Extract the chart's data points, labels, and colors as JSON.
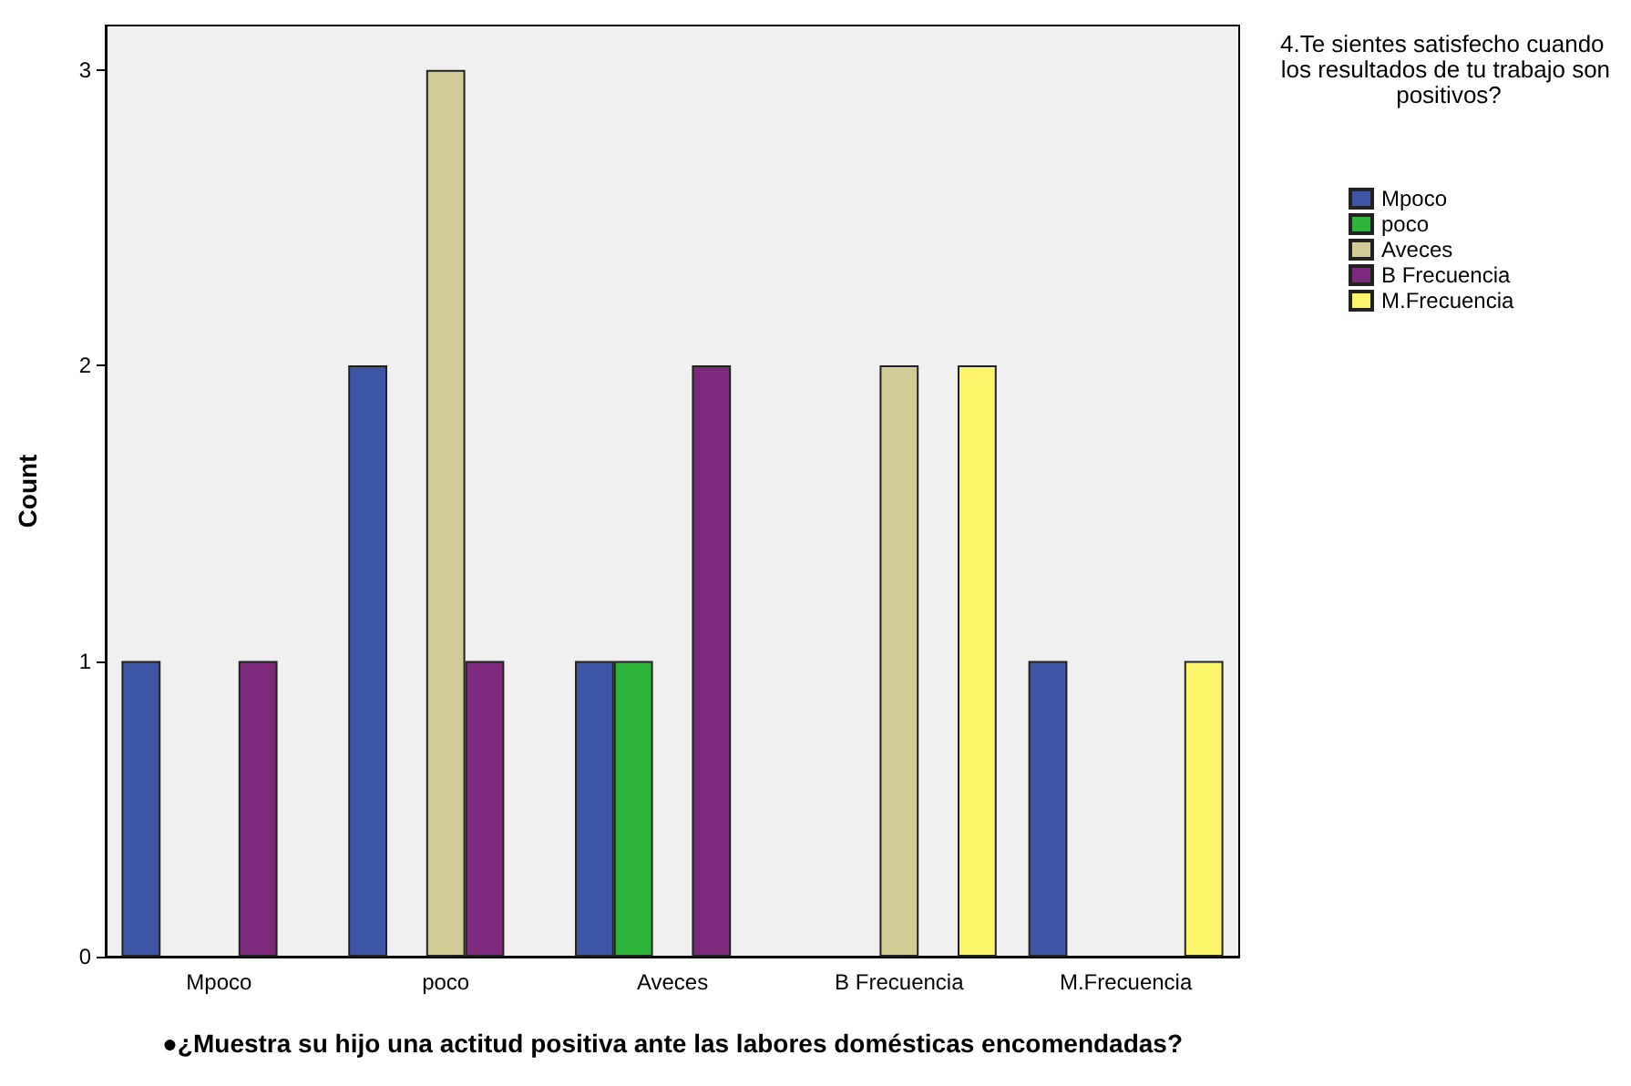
{
  "chart_data": {
    "type": "bar",
    "xlabel": "●¿Muestra su hijo una actitud positiva ante las labores domésticas encomendadas?",
    "ylabel": "Count",
    "legend_title": "4.Te sientes satisfecho cuando  los resultados de tu trabajo son positivos?",
    "categories": [
      "Mpoco",
      "poco",
      "Aveces",
      "B Frecuencia",
      "M.Frecuencia"
    ],
    "series": [
      {
        "name": "Mpoco",
        "color": "#3d55a5",
        "values": [
          1,
          2,
          1,
          null,
          1
        ]
      },
      {
        "name": "poco",
        "color": "#2db43a",
        "values": [
          null,
          null,
          1,
          null,
          null
        ]
      },
      {
        "name": "Aveces",
        "color": "#d2cc94",
        "values": [
          null,
          3,
          null,
          2,
          null
        ]
      },
      {
        "name": "B Frecuencia",
        "color": "#7d2a7e",
        "values": [
          1,
          1,
          2,
          null,
          null
        ]
      },
      {
        "name": "M.Frecuencia",
        "color": "#fcf56c",
        "values": [
          null,
          null,
          null,
          2,
          1
        ]
      }
    ],
    "ylim": [
      0,
      3.15
    ],
    "yticks": [
      0,
      1,
      2,
      3
    ],
    "grid": false,
    "legend": "top right"
  }
}
